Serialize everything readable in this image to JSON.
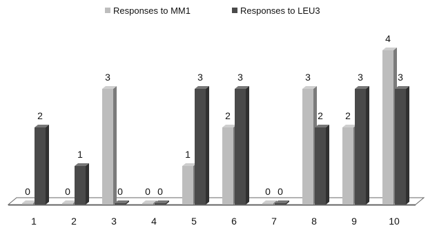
{
  "chart_data": {
    "type": "bar",
    "categories": [
      "1",
      "2",
      "3",
      "4",
      "5",
      "6",
      "7",
      "8",
      "9",
      "10"
    ],
    "series": [
      {
        "name": "Responses to MM1",
        "values": [
          0,
          0,
          3,
          0,
          1,
          2,
          0,
          3,
          2,
          4
        ]
      },
      {
        "name": "Responses to LEU3",
        "values": [
          2,
          1,
          0,
          0,
          3,
          3,
          0,
          2,
          3,
          3
        ]
      }
    ],
    "ylim": [
      0,
      4
    ],
    "grid": false,
    "legend_position": "top-center",
    "three_d": true,
    "data_labels": true
  },
  "colors": {
    "mm1": "#bdbdbd",
    "leu3": "#4a4a4a"
  }
}
